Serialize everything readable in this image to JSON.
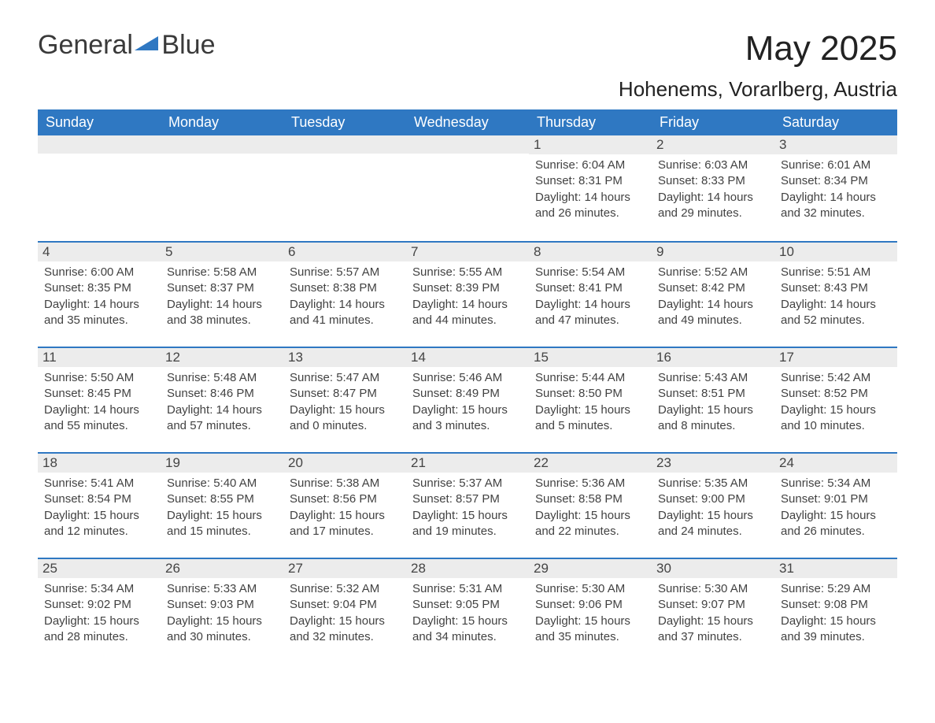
{
  "brand": {
    "part1": "General",
    "part2": "Blue"
  },
  "title": "May 2025",
  "subtitle": "Hohenems, Vorarlberg, Austria",
  "colors": {
    "header_bg": "#2f78c2",
    "header_text": "#ffffff",
    "daynum_bg": "#ececec",
    "border": "#2f78c2",
    "text": "#333333",
    "logo_accent": "#2f78c2"
  },
  "typography": {
    "title_fontsize": 44,
    "subtitle_fontsize": 26,
    "dow_fontsize": 18,
    "daynum_fontsize": 17,
    "detail_fontsize": 15,
    "logo_fontsize": 34
  },
  "layout": {
    "columns": 7,
    "rows": 5,
    "cell_min_height": 128
  },
  "days_of_week": [
    "Sunday",
    "Monday",
    "Tuesday",
    "Wednesday",
    "Thursday",
    "Friday",
    "Saturday"
  ],
  "weeks": [
    [
      null,
      null,
      null,
      null,
      {
        "num": "1",
        "sunrise": "Sunrise: 6:04 AM",
        "sunset": "Sunset: 8:31 PM",
        "daylight1": "Daylight: 14 hours",
        "daylight2": "and 26 minutes."
      },
      {
        "num": "2",
        "sunrise": "Sunrise: 6:03 AM",
        "sunset": "Sunset: 8:33 PM",
        "daylight1": "Daylight: 14 hours",
        "daylight2": "and 29 minutes."
      },
      {
        "num": "3",
        "sunrise": "Sunrise: 6:01 AM",
        "sunset": "Sunset: 8:34 PM",
        "daylight1": "Daylight: 14 hours",
        "daylight2": "and 32 minutes."
      }
    ],
    [
      {
        "num": "4",
        "sunrise": "Sunrise: 6:00 AM",
        "sunset": "Sunset: 8:35 PM",
        "daylight1": "Daylight: 14 hours",
        "daylight2": "and 35 minutes."
      },
      {
        "num": "5",
        "sunrise": "Sunrise: 5:58 AM",
        "sunset": "Sunset: 8:37 PM",
        "daylight1": "Daylight: 14 hours",
        "daylight2": "and 38 minutes."
      },
      {
        "num": "6",
        "sunrise": "Sunrise: 5:57 AM",
        "sunset": "Sunset: 8:38 PM",
        "daylight1": "Daylight: 14 hours",
        "daylight2": "and 41 minutes."
      },
      {
        "num": "7",
        "sunrise": "Sunrise: 5:55 AM",
        "sunset": "Sunset: 8:39 PM",
        "daylight1": "Daylight: 14 hours",
        "daylight2": "and 44 minutes."
      },
      {
        "num": "8",
        "sunrise": "Sunrise: 5:54 AM",
        "sunset": "Sunset: 8:41 PM",
        "daylight1": "Daylight: 14 hours",
        "daylight2": "and 47 minutes."
      },
      {
        "num": "9",
        "sunrise": "Sunrise: 5:52 AM",
        "sunset": "Sunset: 8:42 PM",
        "daylight1": "Daylight: 14 hours",
        "daylight2": "and 49 minutes."
      },
      {
        "num": "10",
        "sunrise": "Sunrise: 5:51 AM",
        "sunset": "Sunset: 8:43 PM",
        "daylight1": "Daylight: 14 hours",
        "daylight2": "and 52 minutes."
      }
    ],
    [
      {
        "num": "11",
        "sunrise": "Sunrise: 5:50 AM",
        "sunset": "Sunset: 8:45 PM",
        "daylight1": "Daylight: 14 hours",
        "daylight2": "and 55 minutes."
      },
      {
        "num": "12",
        "sunrise": "Sunrise: 5:48 AM",
        "sunset": "Sunset: 8:46 PM",
        "daylight1": "Daylight: 14 hours",
        "daylight2": "and 57 minutes."
      },
      {
        "num": "13",
        "sunrise": "Sunrise: 5:47 AM",
        "sunset": "Sunset: 8:47 PM",
        "daylight1": "Daylight: 15 hours",
        "daylight2": "and 0 minutes."
      },
      {
        "num": "14",
        "sunrise": "Sunrise: 5:46 AM",
        "sunset": "Sunset: 8:49 PM",
        "daylight1": "Daylight: 15 hours",
        "daylight2": "and 3 minutes."
      },
      {
        "num": "15",
        "sunrise": "Sunrise: 5:44 AM",
        "sunset": "Sunset: 8:50 PM",
        "daylight1": "Daylight: 15 hours",
        "daylight2": "and 5 minutes."
      },
      {
        "num": "16",
        "sunrise": "Sunrise: 5:43 AM",
        "sunset": "Sunset: 8:51 PM",
        "daylight1": "Daylight: 15 hours",
        "daylight2": "and 8 minutes."
      },
      {
        "num": "17",
        "sunrise": "Sunrise: 5:42 AM",
        "sunset": "Sunset: 8:52 PM",
        "daylight1": "Daylight: 15 hours",
        "daylight2": "and 10 minutes."
      }
    ],
    [
      {
        "num": "18",
        "sunrise": "Sunrise: 5:41 AM",
        "sunset": "Sunset: 8:54 PM",
        "daylight1": "Daylight: 15 hours",
        "daylight2": "and 12 minutes."
      },
      {
        "num": "19",
        "sunrise": "Sunrise: 5:40 AM",
        "sunset": "Sunset: 8:55 PM",
        "daylight1": "Daylight: 15 hours",
        "daylight2": "and 15 minutes."
      },
      {
        "num": "20",
        "sunrise": "Sunrise: 5:38 AM",
        "sunset": "Sunset: 8:56 PM",
        "daylight1": "Daylight: 15 hours",
        "daylight2": "and 17 minutes."
      },
      {
        "num": "21",
        "sunrise": "Sunrise: 5:37 AM",
        "sunset": "Sunset: 8:57 PM",
        "daylight1": "Daylight: 15 hours",
        "daylight2": "and 19 minutes."
      },
      {
        "num": "22",
        "sunrise": "Sunrise: 5:36 AM",
        "sunset": "Sunset: 8:58 PM",
        "daylight1": "Daylight: 15 hours",
        "daylight2": "and 22 minutes."
      },
      {
        "num": "23",
        "sunrise": "Sunrise: 5:35 AM",
        "sunset": "Sunset: 9:00 PM",
        "daylight1": "Daylight: 15 hours",
        "daylight2": "and 24 minutes."
      },
      {
        "num": "24",
        "sunrise": "Sunrise: 5:34 AM",
        "sunset": "Sunset: 9:01 PM",
        "daylight1": "Daylight: 15 hours",
        "daylight2": "and 26 minutes."
      }
    ],
    [
      {
        "num": "25",
        "sunrise": "Sunrise: 5:34 AM",
        "sunset": "Sunset: 9:02 PM",
        "daylight1": "Daylight: 15 hours",
        "daylight2": "and 28 minutes."
      },
      {
        "num": "26",
        "sunrise": "Sunrise: 5:33 AM",
        "sunset": "Sunset: 9:03 PM",
        "daylight1": "Daylight: 15 hours",
        "daylight2": "and 30 minutes."
      },
      {
        "num": "27",
        "sunrise": "Sunrise: 5:32 AM",
        "sunset": "Sunset: 9:04 PM",
        "daylight1": "Daylight: 15 hours",
        "daylight2": "and 32 minutes."
      },
      {
        "num": "28",
        "sunrise": "Sunrise: 5:31 AM",
        "sunset": "Sunset: 9:05 PM",
        "daylight1": "Daylight: 15 hours",
        "daylight2": "and 34 minutes."
      },
      {
        "num": "29",
        "sunrise": "Sunrise: 5:30 AM",
        "sunset": "Sunset: 9:06 PM",
        "daylight1": "Daylight: 15 hours",
        "daylight2": "and 35 minutes."
      },
      {
        "num": "30",
        "sunrise": "Sunrise: 5:30 AM",
        "sunset": "Sunset: 9:07 PM",
        "daylight1": "Daylight: 15 hours",
        "daylight2": "and 37 minutes."
      },
      {
        "num": "31",
        "sunrise": "Sunrise: 5:29 AM",
        "sunset": "Sunset: 9:08 PM",
        "daylight1": "Daylight: 15 hours",
        "daylight2": "and 39 minutes."
      }
    ]
  ]
}
